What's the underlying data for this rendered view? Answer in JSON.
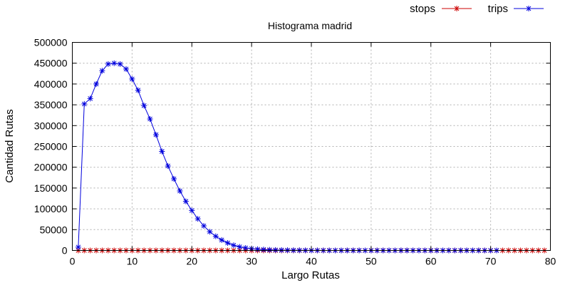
{
  "chart_data": {
    "type": "line",
    "title": "Histograma madrid",
    "xlabel": "Largo Rutas",
    "ylabel": "Cantidad Rutas",
    "xlim": [
      0,
      80
    ],
    "ylim": [
      0,
      500000
    ],
    "x_ticks": [
      0,
      10,
      20,
      30,
      40,
      50,
      60,
      70,
      80
    ],
    "y_ticks": [
      0,
      50000,
      100000,
      150000,
      200000,
      250000,
      300000,
      350000,
      400000,
      450000,
      500000
    ],
    "grid": true,
    "legend_position": "top-right",
    "series": [
      {
        "name": "stops",
        "color": "#cc0000",
        "marker": "asterisk",
        "x": [
          1,
          2,
          3,
          4,
          5,
          6,
          7,
          8,
          9,
          10,
          11,
          12,
          13,
          14,
          15,
          16,
          17,
          18,
          19,
          20,
          21,
          22,
          23,
          24,
          25,
          26,
          27,
          28,
          29,
          30,
          31,
          32,
          33,
          34,
          35,
          36,
          37,
          38,
          39,
          40,
          41,
          42,
          43,
          44,
          45,
          46,
          47,
          48,
          49,
          50,
          51,
          52,
          53,
          54,
          55,
          56,
          57,
          58,
          59,
          60,
          61,
          62,
          63,
          64,
          65,
          66,
          67,
          68,
          69,
          70,
          71,
          72,
          73,
          74,
          75,
          76,
          77,
          78,
          79
        ],
        "y": [
          0,
          0,
          0,
          0,
          0,
          0,
          0,
          0,
          0,
          0,
          0,
          0,
          0,
          0,
          0,
          0,
          0,
          0,
          0,
          0,
          0,
          0,
          0,
          0,
          0,
          0,
          0,
          0,
          0,
          0,
          0,
          0,
          0,
          0,
          0,
          0,
          0,
          0,
          0,
          0,
          0,
          0,
          0,
          0,
          0,
          0,
          0,
          0,
          0,
          0,
          0,
          0,
          0,
          0,
          0,
          0,
          0,
          0,
          0,
          0,
          0,
          0,
          0,
          0,
          0,
          0,
          0,
          0,
          0,
          0,
          0,
          0,
          0,
          0,
          0,
          0,
          0,
          0,
          0
        ]
      },
      {
        "name": "trips",
        "color": "#0000dd",
        "marker": "asterisk",
        "x": [
          1,
          2,
          3,
          4,
          5,
          6,
          7,
          8,
          9,
          10,
          11,
          12,
          13,
          14,
          15,
          16,
          17,
          18,
          19,
          20,
          21,
          22,
          23,
          24,
          25,
          26,
          27,
          28,
          29,
          30,
          31,
          32,
          33,
          34,
          35,
          36,
          37,
          38,
          39,
          40,
          41,
          42,
          43,
          44,
          45,
          46,
          47,
          48,
          49,
          50,
          51,
          52,
          53,
          54,
          55,
          56,
          57,
          58,
          59,
          60,
          61,
          62,
          63,
          64,
          65,
          66,
          67,
          68,
          69,
          70,
          71
        ],
        "y": [
          8000,
          352000,
          365000,
          400000,
          432000,
          448000,
          450000,
          448000,
          436000,
          412000,
          385000,
          348000,
          316000,
          278000,
          238000,
          203000,
          172000,
          143000,
          118000,
          96000,
          76000,
          59000,
          45000,
          34000,
          25000,
          18000,
          12500,
          8500,
          6000,
          4200,
          3000,
          2100,
          1500,
          1100,
          800,
          600,
          450,
          330,
          250,
          180,
          130,
          95,
          70,
          50,
          36,
          26,
          19,
          14,
          10,
          7,
          5,
          4,
          3,
          2,
          1,
          1,
          1,
          0,
          0,
          0,
          0,
          0,
          0,
          0,
          0,
          0,
          0,
          0,
          0,
          0,
          0
        ]
      }
    ]
  }
}
